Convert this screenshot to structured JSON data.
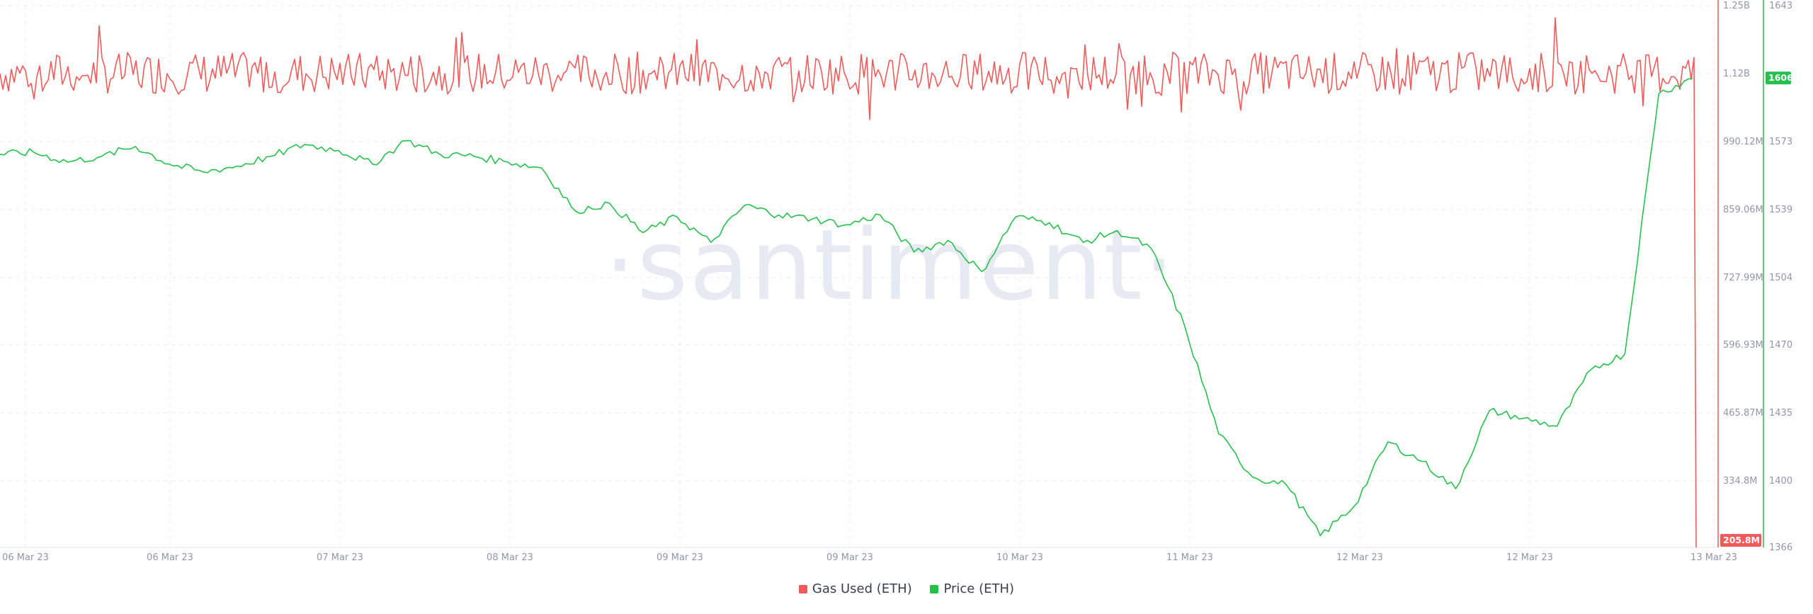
{
  "watermark": "·santiment·",
  "chart_data": {
    "type": "line",
    "x_ticks": [
      "06 Mar 23",
      "06 Mar 23",
      "07 Mar 23",
      "08 Mar 23",
      "09 Mar 23",
      "09 Mar 23",
      "10 Mar 23",
      "11 Mar 23",
      "12 Mar 23",
      "12 Mar 23",
      "13 Mar 23"
    ],
    "left_axis": {
      "ticks": [
        "1.25B",
        "1.12B",
        "990.12M",
        "859.06M",
        "727.99M",
        "596.93M",
        "465.87M",
        "334.8M"
      ],
      "current_label": "205.8M",
      "color": "#f15a5a"
    },
    "right_axis": {
      "ticks": [
        "1643",
        "1606",
        "1573",
        "1539",
        "1504",
        "1470",
        "1435",
        "1400",
        "1366"
      ],
      "current_label": "1606",
      "range": [
        1366,
        1643
      ],
      "color": "#26c04c"
    },
    "series": [
      {
        "name": "Gas Used (ETH)",
        "color": "#f15a5a",
        "ylim": [
          205800000,
          1250000000
        ],
        "band": [
          1090000000,
          1150000000
        ],
        "last_value": 205800000
      },
      {
        "name": "Price (ETH)",
        "color": "#26c04c",
        "ylim": [
          1366,
          1643
        ],
        "x": [
          0,
          2,
          4,
          6,
          8,
          10,
          12,
          14,
          16,
          18,
          20,
          22,
          24,
          26,
          28,
          30,
          32,
          34,
          36,
          38,
          40,
          42,
          44,
          46,
          48,
          50,
          52,
          54,
          56,
          58,
          60,
          62,
          64,
          66,
          68,
          70,
          72,
          74,
          76,
          78,
          80,
          82,
          84,
          86,
          88,
          90,
          92,
          94,
          96,
          98,
          100
        ],
        "values": [
          1567,
          1568,
          1563,
          1566,
          1571,
          1562,
          1558,
          1561,
          1566,
          1572,
          1569,
          1562,
          1574,
          1567,
          1566,
          1563,
          1560,
          1538,
          1542,
          1527,
          1535,
          1522,
          1541,
          1536,
          1534,
          1531,
          1536,
          1517,
          1523,
          1507,
          1535,
          1532,
          1522,
          1528,
          1519,
          1479,
          1424,
          1402,
          1398,
          1372,
          1387,
          1420,
          1410,
          1396,
          1436,
          1432,
          1428,
          1457,
          1465,
          1598,
          1606
        ]
      }
    ]
  },
  "legend": [
    {
      "label": "Gas Used (ETH)",
      "color": "#f15a5a"
    },
    {
      "label": "Price (ETH)",
      "color": "#26c04c"
    }
  ]
}
